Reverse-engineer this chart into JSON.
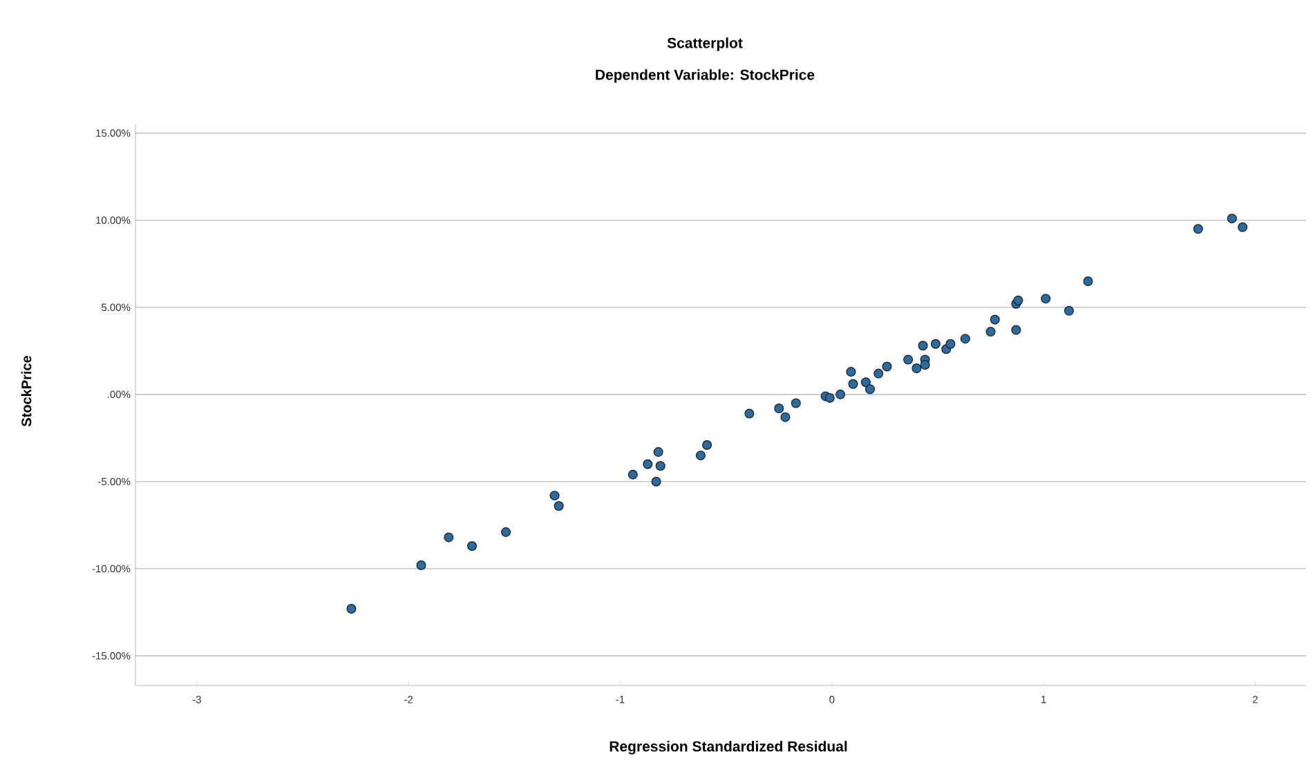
{
  "chart_data": {
    "type": "scatter",
    "title": "Scatterplot",
    "subtitle": "Dependent Variable: StockPrice",
    "xlabel": "Regression Standardized Residual",
    "ylabel": "StockPrice",
    "xlim": [
      -3.29,
      2.24
    ],
    "ylim": [
      -16.7,
      15.5
    ],
    "xticks": [
      -3,
      -2,
      -1,
      0,
      1,
      2
    ],
    "yticks": [
      {
        "value": -15,
        "label": "-15.00%"
      },
      {
        "value": -10,
        "label": "-10.00%"
      },
      {
        "value": -5,
        "label": "-5.00%"
      },
      {
        "value": 0,
        "label": ".00%"
      },
      {
        "value": 5,
        "label": "5.00%"
      },
      {
        "value": 10,
        "label": "10.00%"
      },
      {
        "value": 15,
        "label": "15.00%"
      }
    ],
    "grid": "y",
    "marker": "circle",
    "color": "#2f6a9a",
    "x": [
      -2.27,
      -1.94,
      -1.81,
      -1.7,
      -1.54,
      -1.31,
      -1.29,
      -0.94,
      -0.87,
      -0.82,
      -0.81,
      -0.83,
      -0.62,
      -0.59,
      -0.39,
      -0.25,
      -0.22,
      -0.17,
      -0.03,
      -0.01,
      0.04,
      0.09,
      0.1,
      0.16,
      0.18,
      0.22,
      0.26,
      0.36,
      0.4,
      0.44,
      0.44,
      0.43,
      0.49,
      0.54,
      0.56,
      0.63,
      0.75,
      0.77,
      0.87,
      0.87,
      0.88,
      1.01,
      1.12,
      1.21,
      1.73,
      1.89,
      1.94
    ],
    "values": [
      -12.3,
      -9.8,
      -8.2,
      -8.7,
      -7.9,
      -5.8,
      -6.4,
      -4.6,
      -4.0,
      -3.3,
      -4.1,
      -5.0,
      -3.5,
      -2.9,
      -1.1,
      -0.8,
      -1.3,
      -0.5,
      -0.1,
      -0.2,
      0.0,
      1.3,
      0.6,
      0.7,
      0.3,
      1.2,
      1.6,
      2.0,
      1.5,
      2.0,
      1.7,
      2.8,
      2.9,
      2.6,
      2.9,
      3.2,
      3.6,
      4.3,
      3.7,
      5.2,
      5.4,
      5.5,
      4.8,
      6.5,
      9.5,
      10.1,
      9.6
    ]
  }
}
